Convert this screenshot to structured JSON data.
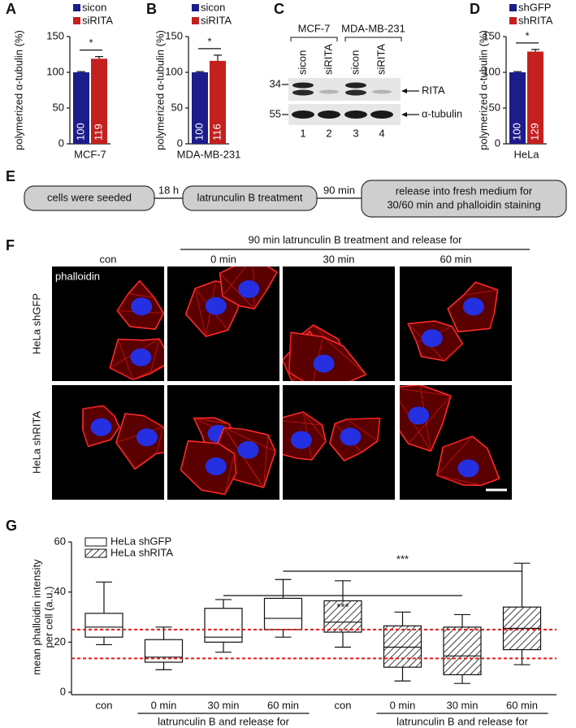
{
  "chart_data": [
    {
      "type": "bar",
      "panel_label": "A",
      "ylabel": "polymerized α-tubulin (%)",
      "categories": [
        "MCF-7"
      ],
      "ylim": [
        0,
        150
      ],
      "yticks": [
        0,
        50,
        100,
        150
      ],
      "series": [
        {
          "name": "sicon",
          "color": "#1c1c8a",
          "values": [
            100
          ],
          "errors": [
            1
          ]
        },
        {
          "name": "siRITA",
          "color": "#c3201f",
          "values": [
            119
          ],
          "errors": [
            3
          ]
        }
      ],
      "annotations": [
        "*"
      ]
    },
    {
      "type": "bar",
      "panel_label": "B",
      "ylabel": "polymerized α-tubulin (%)",
      "categories": [
        "MDA-MB-231"
      ],
      "ylim": [
        0,
        150
      ],
      "yticks": [
        0,
        50,
        100,
        150
      ],
      "series": [
        {
          "name": "sicon",
          "color": "#1c1c8a",
          "values": [
            100
          ],
          "errors": [
            1
          ]
        },
        {
          "name": "siRITA",
          "color": "#c3201f",
          "values": [
            116
          ],
          "errors": [
            8
          ]
        }
      ],
      "annotations": [
        "*"
      ]
    },
    {
      "type": "bar",
      "panel_label": "D",
      "ylabel": "polymerized α-tubulin (%)",
      "categories": [
        "HeLa"
      ],
      "ylim": [
        0,
        150
      ],
      "yticks": [
        0,
        50,
        100,
        150
      ],
      "series": [
        {
          "name": "shGFP",
          "color": "#1c1c8a",
          "values": [
            100
          ],
          "errors": [
            1
          ]
        },
        {
          "name": "shRITA",
          "color": "#c3201f",
          "values": [
            129
          ],
          "errors": [
            3
          ]
        }
      ],
      "annotations": [
        "*"
      ]
    },
    {
      "type": "box",
      "panel_label": "G",
      "ylabel": [
        "mean phalloidin intensity",
        "per cell (a.u.)"
      ],
      "categories": [
        "con",
        "0 min",
        "30 min",
        "60 min",
        "con",
        "0 min",
        "30 min",
        "60 min"
      ],
      "group_labels": [
        "latrunculin B and release for",
        "latrunculin B and release for"
      ],
      "ylim": [
        0,
        60
      ],
      "yticks": [
        0,
        20,
        40,
        60
      ],
      "series": [
        {
          "name": "HeLa shGFP",
          "fill": "open",
          "values": [
            {
              "min": 19,
              "q1": 22,
              "median": 26,
              "q3": 31.5,
              "max": 44
            },
            {
              "min": 9,
              "q1": 12,
              "median": 14,
              "q3": 21,
              "max": 26
            },
            {
              "min": 16,
              "q1": 20,
              "median": 22,
              "q3": 33.5,
              "max": 37
            },
            {
              "min": 22,
              "q1": 25,
              "median": 29.5,
              "q3": 37.5,
              "max": 45
            },
            null,
            null,
            null,
            null
          ]
        },
        {
          "name": "HeLa shRITA",
          "fill": "hatched",
          "values": [
            null,
            null,
            null,
            null,
            {
              "min": 18,
              "q1": 24,
              "median": 28,
              "q3": 36.5,
              "max": 44.5
            },
            {
              "min": 4.5,
              "q1": 10,
              "median": 18,
              "q3": 26.5,
              "max": 32
            },
            {
              "min": 3.5,
              "q1": 7,
              "median": 14.5,
              "q3": 26,
              "max": 31
            },
            {
              "min": 11,
              "q1": 17,
              "median": 25.5,
              "q3": 34,
              "max": 51.5
            }
          ]
        }
      ],
      "reference_lines": [
        {
          "value": 25,
          "color": "#e31a1c"
        },
        {
          "value": 13.5,
          "color": "#e31a1c"
        }
      ],
      "annotations": [
        "***",
        "***"
      ]
    }
  ],
  "blot": {
    "panel_label": "C",
    "cell_lines": [
      "MCF-7",
      "MDA-MB-231"
    ],
    "lanes": [
      "sicon",
      "siRITA",
      "sicon",
      "siRITA"
    ],
    "lane_numbers": [
      "1",
      "2",
      "3",
      "4"
    ],
    "markers": [
      "34",
      "55"
    ],
    "bands": [
      "RITA",
      "α-tubulin"
    ]
  },
  "workflow": {
    "panel_label": "E",
    "steps": [
      [
        "cells were seeded"
      ],
      [
        "latrunculin B treatment"
      ],
      [
        "release into fresh medium for",
        "30/60 min and phalloidin staining"
      ]
    ],
    "intervals": [
      "18 h",
      "90 min"
    ]
  },
  "micrographs": {
    "panel_label": "F",
    "header": "90 min latrunculin B treatment and release for",
    "columns": [
      "con",
      "0 min",
      "30 min",
      "60 min"
    ],
    "rows": [
      "HeLa shGFP",
      "HeLa shRITA"
    ],
    "stain": "phalloidin"
  }
}
